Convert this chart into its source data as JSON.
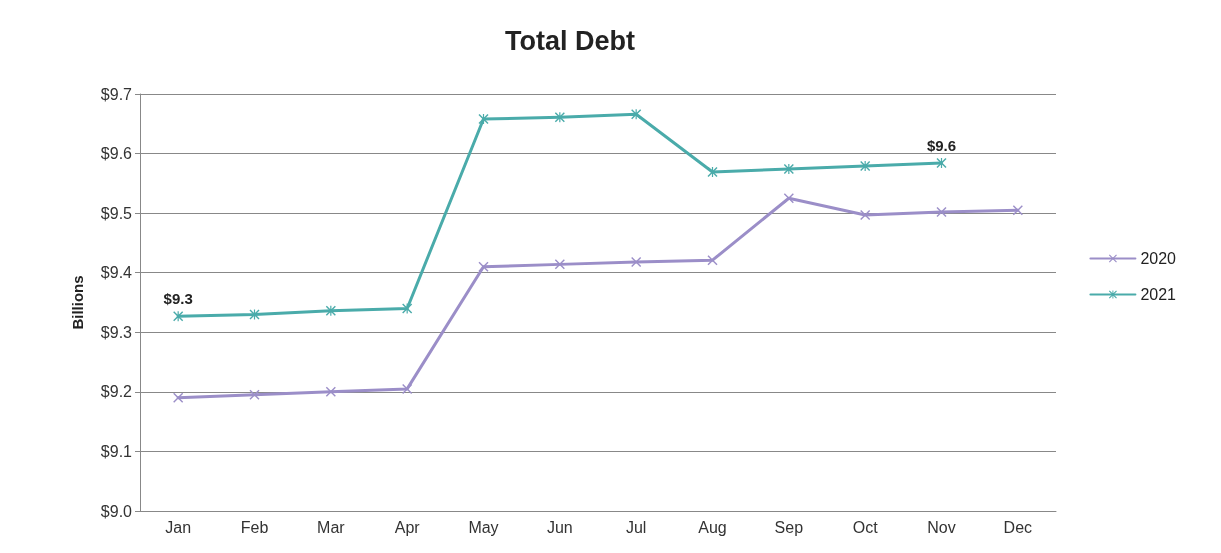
{
  "chart_data": {
    "type": "line",
    "title": "Total Debt",
    "ylabel": "Billions",
    "categories": [
      "Jan",
      "Feb",
      "Mar",
      "Apr",
      "May",
      "Jun",
      "Jul",
      "Aug",
      "Sep",
      "Oct",
      "Nov",
      "Dec"
    ],
    "series": [
      {
        "name": "2020",
        "color": "#9b8ec8",
        "marker": "cross",
        "values": [
          9.19,
          9.195,
          9.2,
          9.205,
          9.41,
          9.414,
          9.418,
          9.421,
          9.525,
          9.497,
          9.502,
          9.505
        ]
      },
      {
        "name": "2021",
        "color": "#4aabaa",
        "marker": "star",
        "values": [
          9.327,
          9.33,
          9.336,
          9.34,
          9.658,
          9.661,
          9.666,
          9.569,
          9.574,
          9.579,
          9.584,
          null
        ],
        "value_labels": [
          "$9.3",
          null,
          null,
          null,
          null,
          null,
          null,
          null,
          null,
          null,
          "$9.6",
          null
        ]
      }
    ],
    "ylim": [
      9.0,
      9.7
    ],
    "yticks": [
      {
        "value": 9.0,
        "label": "$9.0"
      },
      {
        "value": 9.1,
        "label": "$9.1"
      },
      {
        "value": 9.2,
        "label": "$9.2"
      },
      {
        "value": 9.3,
        "label": "$9.3"
      },
      {
        "value": 9.4,
        "label": "$9.4"
      },
      {
        "value": 9.5,
        "label": "$9.5"
      },
      {
        "value": 9.6,
        "label": "$9.6"
      },
      {
        "value": 9.7,
        "label": "$9.7"
      }
    ],
    "grid": "y",
    "legend": "right",
    "line_style": "solid"
  }
}
